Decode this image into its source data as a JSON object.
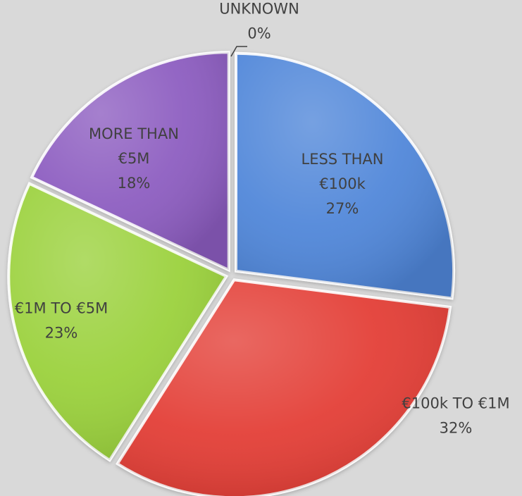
{
  "chart_data": {
    "type": "pie",
    "slices": [
      {
        "name": "LESS THAN €100k",
        "label_lines": [
          "LESS THAN",
          "€100k",
          "27%"
        ],
        "value": 27,
        "color": "#4f86d9"
      },
      {
        "name": "€100k TO €1M",
        "label_lines": [
          "€100k TO €1M",
          "32%"
        ],
        "value": 32,
        "color": "#e33c34"
      },
      {
        "name": "€1M TO €5M",
        "label_lines": [
          "€1M TO €5M",
          "23%"
        ],
        "value": 23,
        "color": "#9ad13b"
      },
      {
        "name": "MORE THAN €5M",
        "label_lines": [
          "MORE THAN",
          "€5M",
          "18%"
        ],
        "value": 18,
        "color": "#8c5bc0"
      },
      {
        "name": "UNKNOWN",
        "label_lines": [
          "UNKNOWN",
          "0%"
        ],
        "value": 0,
        "color": "#7a7a7a"
      }
    ],
    "legend": "none",
    "grid": false
  }
}
